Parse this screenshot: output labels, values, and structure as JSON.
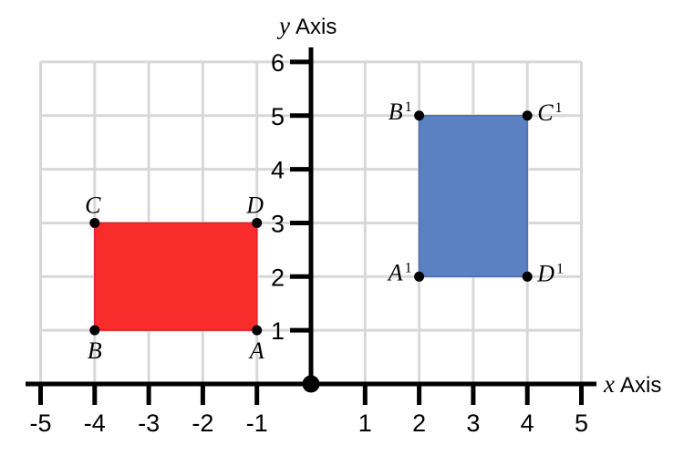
{
  "chart_data": {
    "type": "scatter",
    "title": "",
    "xlabel": "x Axis",
    "ylabel": "y Axis",
    "xlim": [
      -5.3,
      5.3
    ],
    "ylim": [
      0,
      6.3
    ],
    "grid": true,
    "grid_color": "#d8d8d8",
    "axis_color": "#000000",
    "background": "#ffffff",
    "x_ticks": [
      -5,
      -4,
      -3,
      -2,
      -1,
      1,
      2,
      3,
      4,
      5
    ],
    "y_ticks": [
      1,
      2,
      3,
      4,
      5,
      6
    ],
    "origin_dot": true,
    "shapes": [
      {
        "id": "red-rectangle",
        "fill": "#f92c2c",
        "stroke": "#e01f23",
        "vertices": [
          [
            -4,
            1
          ],
          [
            -1,
            1
          ],
          [
            -1,
            3
          ],
          [
            -4,
            3
          ]
        ]
      },
      {
        "id": "blue-rectangle",
        "fill": "#5c81c3",
        "stroke": "#4a6fb5",
        "vertices": [
          [
            2,
            2
          ],
          [
            4,
            2
          ],
          [
            4,
            5
          ],
          [
            2,
            5
          ]
        ]
      }
    ],
    "points": [
      {
        "label": "A",
        "x": -1,
        "y": 1,
        "side": "below"
      },
      {
        "label": "B",
        "x": -4,
        "y": 1,
        "side": "below"
      },
      {
        "label": "C",
        "x": -4,
        "y": 3,
        "side": "above"
      },
      {
        "label": "D",
        "x": -1,
        "y": 3,
        "side": "above"
      },
      {
        "label": "A¹",
        "x": 2,
        "y": 2,
        "side": "left"
      },
      {
        "label": "B¹",
        "x": 2,
        "y": 5,
        "side": "left"
      },
      {
        "label": "C¹",
        "x": 4,
        "y": 5,
        "side": "right"
      },
      {
        "label": "D¹",
        "x": 4,
        "y": 2,
        "side": "right"
      }
    ]
  }
}
